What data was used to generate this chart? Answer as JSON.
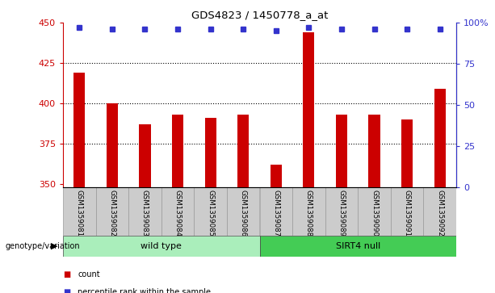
{
  "title": "GDS4823 / 1450778_a_at",
  "samples": [
    "GSM1359081",
    "GSM1359082",
    "GSM1359083",
    "GSM1359084",
    "GSM1359085",
    "GSM1359086",
    "GSM1359087",
    "GSM1359088",
    "GSM1359089",
    "GSM1359090",
    "GSM1359091",
    "GSM1359092"
  ],
  "counts": [
    419,
    400,
    387,
    393,
    391,
    393,
    362,
    444,
    393,
    393,
    390,
    409
  ],
  "percentiles": [
    97,
    96,
    96,
    96,
    96,
    96,
    95,
    97,
    96,
    96,
    96,
    96
  ],
  "ylim_left": [
    348,
    450
  ],
  "ylim_right": [
    0,
    100
  ],
  "yticks_left": [
    350,
    375,
    400,
    425,
    450
  ],
  "yticks_right": [
    0,
    25,
    50,
    75,
    100
  ],
  "bar_color": "#cc0000",
  "dot_color": "#3333cc",
  "grid_lines": [
    375,
    400,
    425
  ],
  "groups": [
    {
      "label": "wild type",
      "start": 0,
      "end": 6,
      "color": "#aaeebb"
    },
    {
      "label": "SIRT4 null",
      "start": 6,
      "end": 12,
      "color": "#44cc55"
    }
  ],
  "legend_items": [
    {
      "label": "count",
      "color": "#cc0000"
    },
    {
      "label": "percentile rank within the sample",
      "color": "#3333cc"
    }
  ],
  "genotype_label": "genotype/variation",
  "bar_width": 0.35,
  "tick_label_area_color": "#cccccc",
  "plot_bg_color": "#ffffff",
  "right_axis_label": "100%"
}
